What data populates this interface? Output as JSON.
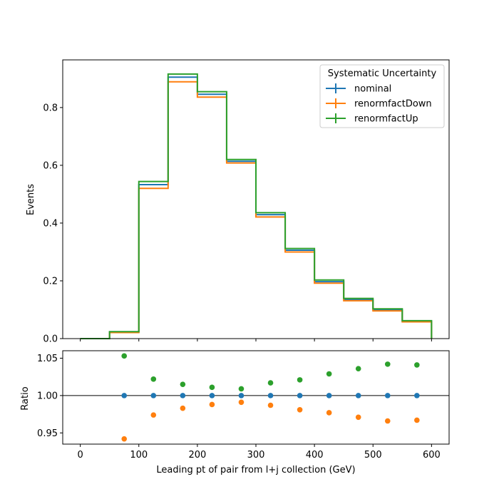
{
  "chart_data": [
    {
      "type": "step",
      "panel": "main",
      "ylabel": "Events",
      "xlim": [
        -30,
        630
      ],
      "ylim": [
        0,
        0.965
      ],
      "bin_edges": [
        0,
        50,
        100,
        150,
        200,
        250,
        300,
        350,
        400,
        450,
        500,
        550,
        600
      ],
      "xticks": [
        0,
        100,
        200,
        300,
        400,
        500,
        600
      ],
      "yticks": [
        0.0,
        0.2,
        0.4,
        0.6,
        0.8
      ],
      "ytick_labels": [
        "0.0",
        "0.2",
        "0.4",
        "0.6",
        "0.8"
      ],
      "series": [
        {
          "name": "nominal",
          "color": "#1f77b4",
          "values": [
            0.0,
            0.023,
            0.533,
            0.905,
            0.846,
            0.614,
            0.429,
            0.306,
            0.197,
            0.135,
            0.099,
            0.06
          ]
        },
        {
          "name": "renormfactDown",
          "color": "#ff7f0e",
          "values": [
            0.0,
            0.021,
            0.52,
            0.889,
            0.836,
            0.608,
            0.421,
            0.3,
            0.192,
            0.131,
            0.096,
            0.058
          ]
        },
        {
          "name": "renormfactUp",
          "color": "#2ca02c",
          "values": [
            0.0,
            0.024,
            0.544,
            0.916,
            0.855,
            0.62,
            0.436,
            0.312,
            0.203,
            0.139,
            0.103,
            0.062
          ]
        }
      ],
      "legend": {
        "title": "Systematic Uncertainty",
        "placement": "top-right",
        "entries": [
          "nominal",
          "renormfactDown",
          "renormfactUp"
        ]
      }
    },
    {
      "type": "scatter",
      "panel": "ratio",
      "xlabel": "Leading pt of pair from l+j collection (GeV)",
      "ylabel": "Ratio",
      "xlim": [
        -30,
        630
      ],
      "ylim": [
        0.935,
        1.06
      ],
      "xticks": [
        0,
        100,
        200,
        300,
        400,
        500,
        600
      ],
      "xtick_labels": [
        "0",
        "100",
        "200",
        "300",
        "400",
        "500",
        "600"
      ],
      "yticks": [
        0.95,
        1.0,
        1.05
      ],
      "ytick_labels": [
        "0.95",
        "1.00",
        "1.05"
      ],
      "reference_line": 1.0,
      "x": [
        75,
        125,
        175,
        225,
        275,
        325,
        375,
        425,
        475,
        525,
        575
      ],
      "series": [
        {
          "name": "nominal",
          "color": "#1f77b4",
          "values": [
            1.0,
            1.0,
            1.0,
            1.0,
            1.0,
            1.0,
            1.0,
            1.0,
            1.0,
            1.0,
            1.0
          ]
        },
        {
          "name": "renormfactDown",
          "color": "#ff7f0e",
          "values": [
            0.942,
            0.974,
            0.983,
            0.988,
            0.991,
            0.987,
            0.981,
            0.977,
            0.971,
            0.966,
            0.967
          ]
        },
        {
          "name": "renormfactUp",
          "color": "#2ca02c",
          "values": [
            1.053,
            1.022,
            1.015,
            1.011,
            1.009,
            1.017,
            1.021,
            1.029,
            1.036,
            1.042,
            1.041
          ]
        }
      ]
    }
  ]
}
